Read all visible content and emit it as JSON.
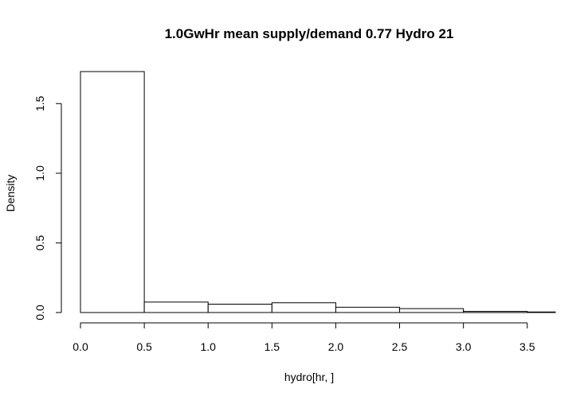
{
  "chart_data": {
    "type": "bar",
    "title": "1.0GwHr mean supply/demand 0.77  Hydro 21",
    "xlabel": "hydro[hr, ]",
    "ylabel": "Density",
    "bins": [
      {
        "x0": 0.0,
        "x1": 0.5,
        "density": 1.73
      },
      {
        "x0": 0.5,
        "x1": 1.0,
        "density": 0.075
      },
      {
        "x0": 1.0,
        "x1": 1.5,
        "density": 0.06
      },
      {
        "x0": 1.5,
        "x1": 2.0,
        "density": 0.07
      },
      {
        "x0": 2.0,
        "x1": 2.5,
        "density": 0.038
      },
      {
        "x0": 2.5,
        "x1": 3.0,
        "density": 0.028
      },
      {
        "x0": 3.0,
        "x1": 3.5,
        "density": 0.008
      },
      {
        "x0": 3.5,
        "x1": 3.72,
        "density": 0.004
      }
    ],
    "xticks": [
      "0.0",
      "0.5",
      "1.0",
      "1.5",
      "2.0",
      "2.5",
      "3.0",
      "3.5"
    ],
    "yticks": [
      "0.0",
      "0.5",
      "1.0",
      "1.5"
    ],
    "xlim": [
      0,
      3.72
    ],
    "ylim": [
      0,
      1.73
    ],
    "grid": false,
    "legend": "none"
  }
}
